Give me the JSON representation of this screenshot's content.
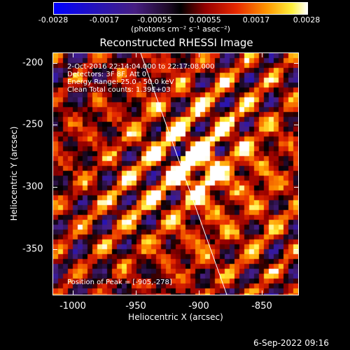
{
  "colorbar": {
    "ticks": [
      "-0.0028",
      "-0.0017",
      "-0.00055",
      "0.00055",
      "0.0017",
      "0.0028"
    ],
    "unit_label": "(photons cm⁻² s⁻¹ asec⁻²)"
  },
  "plot": {
    "title": "Reconstructed RHESSI Image",
    "info_lines": [
      "2-Oct-2016 22:14:04.000 to 22:17:08.000",
      "Detectors: 3F 8F, Att 0",
      "Energy Range: 25.0 - 50.0 keV",
      "Clean     Total counts: 1.39E+03"
    ],
    "peak_label": "Position of Peak = [-905,-278]",
    "x_axis": {
      "title": "Heliocentric X (arcsec)",
      "ticks": [
        "-1000",
        "-950",
        "-900",
        "-850"
      ],
      "range": [
        -1016,
        -826
      ]
    },
    "y_axis": {
      "title": "Heliocentric Y (arcsec)",
      "ticks": [
        "-200",
        "-250",
        "-300",
        "-350"
      ],
      "range": [
        -187,
        -383
      ]
    },
    "peak": [
      -905,
      -278
    ]
  },
  "footer": {
    "date": "6-Sep-2022 09:16"
  }
}
